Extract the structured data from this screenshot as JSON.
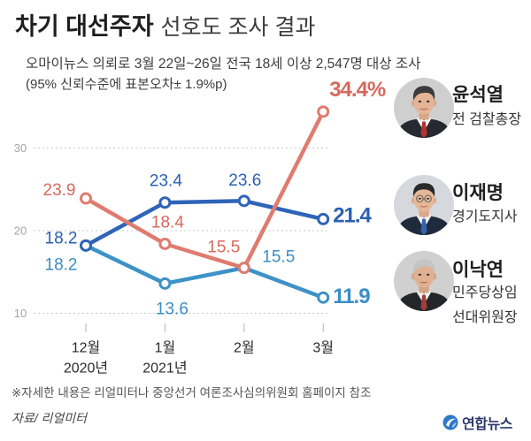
{
  "chart_data": {
    "type": "line",
    "title": [
      "차기 대선주자",
      "선호도 조사 결과"
    ],
    "subtitle": [
      "오마이뉴스 의뢰로 3월 22일~26일 전국 18세 이상 2,547명 대상 조사",
      "(95% 신뢰수준에 표본오차± 1.9%p)"
    ],
    "categories": [
      {
        "month": "12월",
        "year": "2020년"
      },
      {
        "month": "1월",
        "year": "2021년"
      },
      {
        "month": "2월"
      },
      {
        "month": "3월"
      }
    ],
    "yticks": [
      30,
      20,
      10
    ],
    "grid": true,
    "legend": "right",
    "series": [
      {
        "name": "윤석열",
        "role": [
          "전 검찰총장"
        ],
        "color": "#df7b70",
        "label_color": "#d8685d",
        "values": [
          23.9,
          18.4,
          15.5,
          34.4
        ],
        "data_labels": [
          "23.9",
          "18.4",
          "15.5",
          "34.4%"
        ]
      },
      {
        "name": "이재명",
        "role": [
          "경기도지사"
        ],
        "color": "#2e64b8",
        "label_color": "#2a5fb3",
        "values": [
          18.2,
          23.4,
          23.6,
          21.4
        ],
        "data_labels": [
          "18.2",
          "23.4",
          "23.6",
          "21.4"
        ]
      },
      {
        "name": "이낙연",
        "role": [
          "민주당상임",
          "선대위원장"
        ],
        "color": "#3d92c7",
        "label_color": "#3a8ec4",
        "values": [
          18.2,
          13.6,
          15.5,
          11.9
        ],
        "data_labels": [
          "18.2",
          "13.6",
          "15.5",
          "11.9"
        ]
      }
    ],
    "note": "※자세한 내용은 리얼미터나 중앙선거 여론조사심의위원회 홈페이지 참조",
    "source": "자료/ 리얼미터"
  },
  "logo": {
    "text": "연합뉴스",
    "icon": "yonhap-globe-icon",
    "color": "#2b3a6b"
  }
}
